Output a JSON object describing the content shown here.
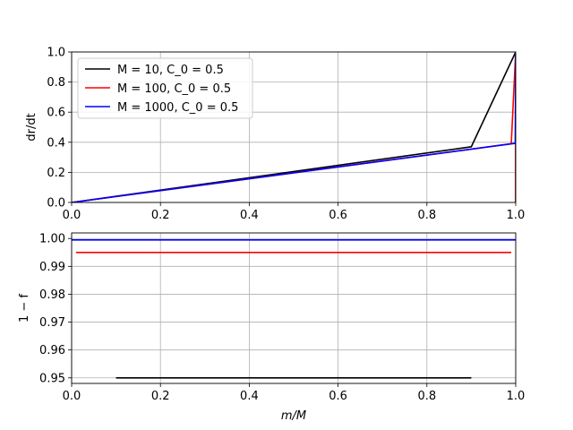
{
  "chart_data": [
    {
      "type": "line",
      "ylabel": "dr/dt",
      "xlabel": "",
      "xlim": [
        0.0,
        1.0
      ],
      "ylim": [
        0.0,
        1.0
      ],
      "xticks": [
        "0.0",
        "0.2",
        "0.4",
        "0.6",
        "0.8",
        "1.0"
      ],
      "yticks": [
        "0.0",
        "0.2",
        "0.4",
        "0.6",
        "0.8",
        "1.0"
      ],
      "grid": true,
      "legend_position": "top-left",
      "series": [
        {
          "name": "M = 10, C_0 = 0.5",
          "color": "#000000",
          "x": [
            0.0,
            0.9,
            1.0,
            1.0
          ],
          "y": [
            0.0,
            0.37,
            1.0,
            0.0
          ]
        },
        {
          "name": "M = 100, C_0 = 0.5",
          "color": "#ff0000",
          "x": [
            0.0,
            0.99,
            1.0,
            1.0
          ],
          "y": [
            0.0,
            0.39,
            1.0,
            0.0
          ]
        },
        {
          "name": "M = 1000, C_0 = 0.5",
          "color": "#0000ff",
          "x": [
            0.0,
            0.999,
            1.0,
            1.0
          ],
          "y": [
            0.0,
            0.393,
            1.0,
            0.393
          ]
        }
      ]
    },
    {
      "type": "line",
      "ylabel": "1 − f",
      "xlabel": "m/M",
      "xlim": [
        0.0,
        1.0
      ],
      "ylim": [
        0.948,
        1.002
      ],
      "xticks": [
        "0.0",
        "0.2",
        "0.4",
        "0.6",
        "0.8",
        "1.0"
      ],
      "yticks": [
        "0.95",
        "0.96",
        "0.97",
        "0.98",
        "0.99",
        "1.00"
      ],
      "ytick_values": [
        0.95,
        0.96,
        0.97,
        0.98,
        0.99,
        1.0
      ],
      "grid": true,
      "series": [
        {
          "color": "#000000",
          "x": [
            0.1,
            0.9
          ],
          "y": [
            0.95,
            0.95
          ]
        },
        {
          "color": "#ff0000",
          "x": [
            0.01,
            0.99
          ],
          "y": [
            0.995,
            0.995
          ]
        },
        {
          "color": "#0000ff",
          "x": [
            0.0,
            1.0
          ],
          "y": [
            0.9995,
            0.9995
          ]
        }
      ]
    }
  ]
}
